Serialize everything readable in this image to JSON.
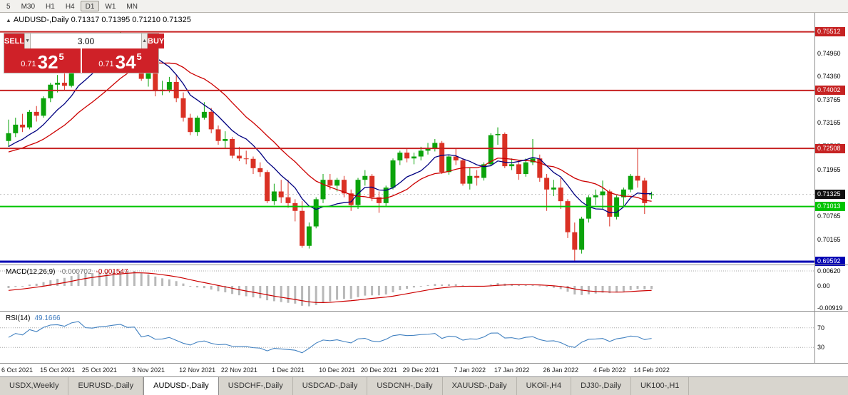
{
  "toolbar": {
    "timeframes": [
      "5",
      "M30",
      "H1",
      "H4",
      "D1",
      "W1",
      "MN"
    ],
    "active_timeframe": "D1"
  },
  "chart": {
    "symbol": "AUDUSD-,Daily",
    "header_values": "0.71317 0.71395 0.71210 0.71325"
  },
  "trade_panel": {
    "sell_label": "SELL",
    "buy_label": "BUY",
    "volume": "3.00",
    "spin_down": "▼",
    "spin_up": "▲",
    "sell_price": {
      "prefix": "0.71",
      "big": "32",
      "sup": "5"
    },
    "buy_price": {
      "prefix": "0.71",
      "big": "34",
      "sup": "5"
    }
  },
  "price_axis": {
    "ticks": [
      "0.74960",
      "0.74360",
      "0.73765",
      "0.73165",
      "0.72565",
      "0.71965",
      "0.71370",
      "0.70765",
      "0.70165"
    ],
    "current": {
      "label": "0.71325",
      "price": 0.71325,
      "bg": "#111111"
    }
  },
  "macd": {
    "label": "MACD(12,26,9)",
    "value1": "-0.000702",
    "value2": "-0.001547",
    "axis": [
      "0.00620",
      "0.00",
      "-0.00919"
    ]
  },
  "rsi": {
    "label": "RSI(14)",
    "value": "49.1666",
    "axis": [
      "70",
      "30"
    ]
  },
  "tabs": [
    {
      "label": "USDX,Weekly",
      "active": false
    },
    {
      "label": "EURUSD-,Daily",
      "active": false
    },
    {
      "label": "AUDUSD-,Daily",
      "active": true
    },
    {
      "label": "USDCHF-,Daily",
      "active": false
    },
    {
      "label": "USDCAD-,Daily",
      "active": false
    },
    {
      "label": "USDCNH-,Daily",
      "active": false
    },
    {
      "label": "XAUUSD-,Daily",
      "active": false
    },
    {
      "label": "UKOil-,H4",
      "active": false
    },
    {
      "label": "DJ30-,Daily",
      "active": false
    },
    {
      "label": "UK100-,H1",
      "active": false
    }
  ],
  "chart_data": {
    "type": "candlestick",
    "symbol": "AUDUSD",
    "timeframe": "Daily",
    "title": "AUDUSD-,Daily",
    "ohlc_header": {
      "open": "0.71317",
      "high": "0.71395",
      "low": "0.71210",
      "close": "0.71325"
    },
    "ylim": [
      0.695,
      0.76
    ],
    "current_price": 0.71325,
    "horizontal_levels": [
      {
        "label": "0.75512",
        "price": 0.75512,
        "color": "#c62222",
        "width": 2
      },
      {
        "label": "0.74002",
        "price": 0.74002,
        "color": "#c62222",
        "width": 2
      },
      {
        "label": "0.72508",
        "price": 0.72508,
        "color": "#c62222",
        "width": 2
      },
      {
        "label": "0.71013",
        "price": 0.71013,
        "color": "#00c400",
        "width": 2
      },
      {
        "label": "0.69592",
        "price": 0.69592,
        "color": "#0202b4",
        "width": 3
      }
    ],
    "candles": [
      [
        0.727,
        0.7325,
        0.7255,
        0.729
      ],
      [
        0.729,
        0.733,
        0.728,
        0.7312
      ],
      [
        0.7312,
        0.734,
        0.7293,
        0.7305
      ],
      [
        0.7305,
        0.735,
        0.73,
        0.7345
      ],
      [
        0.7345,
        0.736,
        0.732,
        0.7335
      ],
      [
        0.7335,
        0.7385,
        0.733,
        0.738
      ],
      [
        0.738,
        0.742,
        0.737,
        0.7415
      ],
      [
        0.7415,
        0.744,
        0.7395,
        0.742
      ],
      [
        0.742,
        0.7445,
        0.74,
        0.7412
      ],
      [
        0.7412,
        0.748,
        0.7408,
        0.7475
      ],
      [
        0.7475,
        0.752,
        0.746,
        0.7513
      ],
      [
        0.7513,
        0.7525,
        0.7455,
        0.7468
      ],
      [
        0.7468,
        0.749,
        0.7448,
        0.7465
      ],
      [
        0.7465,
        0.7505,
        0.7458,
        0.749
      ],
      [
        0.749,
        0.7512,
        0.7478,
        0.75
      ],
      [
        0.75,
        0.753,
        0.749,
        0.7522
      ],
      [
        0.7522,
        0.7551,
        0.7505,
        0.754
      ],
      [
        0.754,
        0.7546,
        0.75,
        0.7518
      ],
      [
        0.7518,
        0.7535,
        0.7492,
        0.7525
      ],
      [
        0.7525,
        0.753,
        0.7425,
        0.743
      ],
      [
        0.743,
        0.7462,
        0.741,
        0.745
      ],
      [
        0.745,
        0.7455,
        0.7385,
        0.7398
      ],
      [
        0.7398,
        0.7425,
        0.7388,
        0.7402
      ],
      [
        0.7402,
        0.7435,
        0.7395,
        0.7422
      ],
      [
        0.7422,
        0.744,
        0.737,
        0.738
      ],
      [
        0.738,
        0.7395,
        0.732,
        0.733
      ],
      [
        0.733,
        0.734,
        0.7285,
        0.7293
      ],
      [
        0.7293,
        0.7335,
        0.7283,
        0.733
      ],
      [
        0.733,
        0.737,
        0.7325,
        0.7345
      ],
      [
        0.7345,
        0.7355,
        0.729,
        0.73
      ],
      [
        0.73,
        0.731,
        0.726,
        0.727
      ],
      [
        0.727,
        0.7295,
        0.725,
        0.7275
      ],
      [
        0.7275,
        0.728,
        0.7225,
        0.7232
      ],
      [
        0.7232,
        0.7255,
        0.7218,
        0.7225
      ],
      [
        0.7225,
        0.7245,
        0.721,
        0.7224
      ],
      [
        0.7224,
        0.723,
        0.7185,
        0.72
      ],
      [
        0.72,
        0.7215,
        0.7178,
        0.719
      ],
      [
        0.719,
        0.7195,
        0.711,
        0.7115
      ],
      [
        0.7115,
        0.716,
        0.7105,
        0.714
      ],
      [
        0.714,
        0.717,
        0.711,
        0.7125
      ],
      [
        0.7125,
        0.717,
        0.7098,
        0.711
      ],
      [
        0.711,
        0.712,
        0.7063,
        0.709
      ],
      [
        0.709,
        0.7115,
        0.6995,
        0.7
      ],
      [
        0.7,
        0.706,
        0.6993,
        0.705
      ],
      [
        0.705,
        0.7125,
        0.7045,
        0.712
      ],
      [
        0.712,
        0.7185,
        0.711,
        0.717
      ],
      [
        0.717,
        0.7185,
        0.7145,
        0.7155
      ],
      [
        0.7155,
        0.7175,
        0.714,
        0.717
      ],
      [
        0.717,
        0.718,
        0.7125,
        0.7135
      ],
      [
        0.7135,
        0.7145,
        0.709,
        0.7105
      ],
      [
        0.7105,
        0.7175,
        0.7095,
        0.717
      ],
      [
        0.717,
        0.7195,
        0.7155,
        0.718
      ],
      [
        0.718,
        0.7185,
        0.7115,
        0.7125
      ],
      [
        0.7125,
        0.714,
        0.7085,
        0.711
      ],
      [
        0.711,
        0.7155,
        0.7103,
        0.715
      ],
      [
        0.715,
        0.7225,
        0.7145,
        0.722
      ],
      [
        0.722,
        0.7245,
        0.7208,
        0.724
      ],
      [
        0.724,
        0.725,
        0.7215,
        0.7225
      ],
      [
        0.7225,
        0.724,
        0.721,
        0.723
      ],
      [
        0.723,
        0.7255,
        0.722,
        0.7245
      ],
      [
        0.7245,
        0.7265,
        0.7235,
        0.725
      ],
      [
        0.725,
        0.7275,
        0.7243,
        0.7265
      ],
      [
        0.7265,
        0.727,
        0.7185,
        0.719
      ],
      [
        0.719,
        0.7235,
        0.7183,
        0.723
      ],
      [
        0.723,
        0.725,
        0.7208,
        0.722
      ],
      [
        0.722,
        0.7225,
        0.7155,
        0.716
      ],
      [
        0.716,
        0.72,
        0.7145,
        0.718
      ],
      [
        0.718,
        0.7195,
        0.7155,
        0.7175
      ],
      [
        0.7175,
        0.7215,
        0.7168,
        0.721
      ],
      [
        0.721,
        0.729,
        0.7205,
        0.7285
      ],
      [
        0.7285,
        0.7305,
        0.726,
        0.7288
      ],
      [
        0.7288,
        0.7292,
        0.72,
        0.7205
      ],
      [
        0.7205,
        0.7225,
        0.7195,
        0.721
      ],
      [
        0.721,
        0.722,
        0.717,
        0.7185
      ],
      [
        0.7185,
        0.7225,
        0.7178,
        0.7215
      ],
      [
        0.7215,
        0.7275,
        0.7208,
        0.7225
      ],
      [
        0.7225,
        0.7235,
        0.7165,
        0.7175
      ],
      [
        0.7175,
        0.7185,
        0.709,
        0.7145
      ],
      [
        0.7145,
        0.717,
        0.7128,
        0.715
      ],
      [
        0.715,
        0.7175,
        0.7095,
        0.7115
      ],
      [
        0.7115,
        0.712,
        0.702,
        0.7035
      ],
      [
        0.7035,
        0.706,
        0.6962,
        0.699
      ],
      [
        0.699,
        0.7075,
        0.698,
        0.707
      ],
      [
        0.707,
        0.713,
        0.706,
        0.7125
      ],
      [
        0.7125,
        0.7145,
        0.7105,
        0.713
      ],
      [
        0.713,
        0.7168,
        0.7095,
        0.714
      ],
      [
        0.714,
        0.7145,
        0.705,
        0.7075
      ],
      [
        0.7075,
        0.713,
        0.7068,
        0.7125
      ],
      [
        0.7125,
        0.715,
        0.71,
        0.7145
      ],
      [
        0.7145,
        0.7185,
        0.7138,
        0.718
      ],
      [
        0.718,
        0.725,
        0.715,
        0.7168
      ],
      [
        0.7168,
        0.7175,
        0.7082,
        0.711
      ],
      [
        0.71317,
        0.71395,
        0.7121,
        0.71325
      ]
    ],
    "date_ticks": [
      [
        "6 Oct 2021",
        0
      ],
      [
        "15 Oct 2021",
        7
      ],
      [
        "25 Oct 2021",
        13
      ],
      [
        "3 Nov 2021",
        20
      ],
      [
        "12 Nov 2021",
        27
      ],
      [
        "22 Nov 2021",
        33
      ],
      [
        "1 Dec 2021",
        40
      ],
      [
        "10 Dec 2021",
        47
      ],
      [
        "20 Dec 2021",
        53
      ],
      [
        "29 Dec 2021",
        59
      ],
      [
        "7 Jan 2022",
        66
      ],
      [
        "17 Jan 2022",
        72
      ],
      [
        "26 Jan 2022",
        79
      ],
      [
        "4 Feb 2022",
        86
      ],
      [
        "14 Feb 2022",
        92
      ]
    ],
    "colors": {
      "bull": "#0ba30b",
      "bear": "#da3124",
      "ma_fast": "#000080",
      "ma_slow": "#cc0000",
      "macd_bars": "#b8b8b8",
      "macd_signal": "#cc0000",
      "rsi_line": "#4080c0"
    }
  }
}
